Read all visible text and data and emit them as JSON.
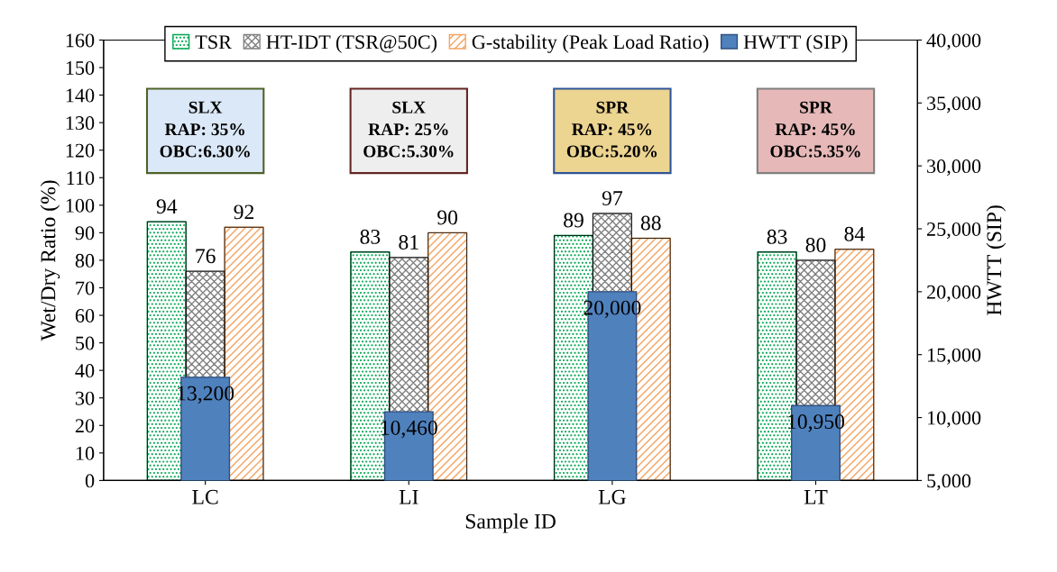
{
  "chart_data": {
    "type": "bar",
    "xlabel": "Sample ID",
    "ylabel": "Wet/Dry Ratio (%)",
    "y2label": "HWTT (SIP)",
    "categories": [
      "LC",
      "LI",
      "LG",
      "LT"
    ],
    "series": [
      {
        "name": "TSR",
        "color": "#00a651",
        "values": [
          94,
          83,
          89,
          83
        ]
      },
      {
        "name": "HT-IDT (TSR@50C)",
        "color": "#808080",
        "values": [
          76,
          81,
          97,
          80
        ]
      },
      {
        "name": "G-stability (Peak Load Ratio)",
        "color": "#f4a460",
        "values": [
          92,
          90,
          88,
          84
        ]
      },
      {
        "name": "HWTT (SIP)",
        "color": "#4f81bd",
        "axis": "y2",
        "values": [
          13200,
          10460,
          20000,
          10950
        ],
        "value_labels": [
          "13,200",
          "10,460",
          "20,000",
          "10,950"
        ]
      }
    ],
    "data_labels": true,
    "ylim": [
      0,
      160
    ],
    "yticks": [
      0,
      10,
      20,
      30,
      40,
      50,
      60,
      70,
      80,
      90,
      100,
      110,
      120,
      130,
      140,
      150,
      160
    ],
    "y2lim": [
      5000,
      40000
    ],
    "y2ticks": [
      {
        "value": 5000,
        "label": "5,000"
      },
      {
        "value": 10000,
        "label": "10,000"
      },
      {
        "value": 15000,
        "label": "15,000"
      },
      {
        "value": 20000,
        "label": "20,000"
      },
      {
        "value": 25000,
        "label": "25,000"
      },
      {
        "value": 30000,
        "label": "30,000"
      },
      {
        "value": 35000,
        "label": "35,000"
      },
      {
        "value": 40000,
        "label": "40,000"
      }
    ],
    "legend": "top",
    "grid": false,
    "annotations": [
      "SLX\nRAP: 35%\nOBC:6.30%",
      "SLX\nRAP: 25%\nOBC:5.30%",
      "SPR\nRAP: 45%\nOBC:5.20%",
      "SPR\nRAP: 45%\nOBC:5.35%"
    ]
  }
}
